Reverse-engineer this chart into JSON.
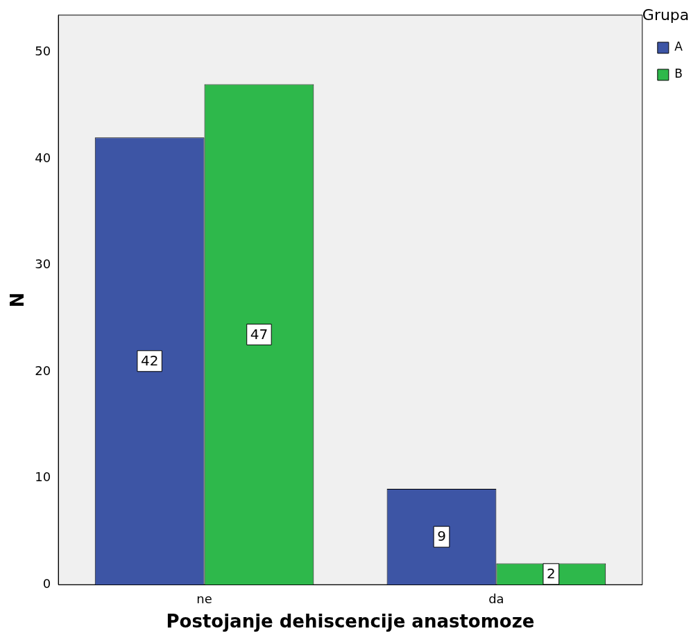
{
  "chart_data": {
    "type": "bar",
    "xlabel": "Postojanje dehiscencije anastomoze",
    "ylabel": "N",
    "legend_title": "Grupa",
    "categories": [
      "ne",
      "da"
    ],
    "series": [
      {
        "name": "A",
        "color": "#3d55a5",
        "values": [
          42,
          9
        ]
      },
      {
        "name": "B",
        "color": "#2eb84b",
        "values": [
          47,
          2
        ]
      }
    ],
    "ylim": [
      0,
      53.5
    ],
    "yticks": [
      0,
      10,
      20,
      30,
      40,
      50
    ],
    "grid": false,
    "legend": "top right",
    "data_labels": true
  }
}
